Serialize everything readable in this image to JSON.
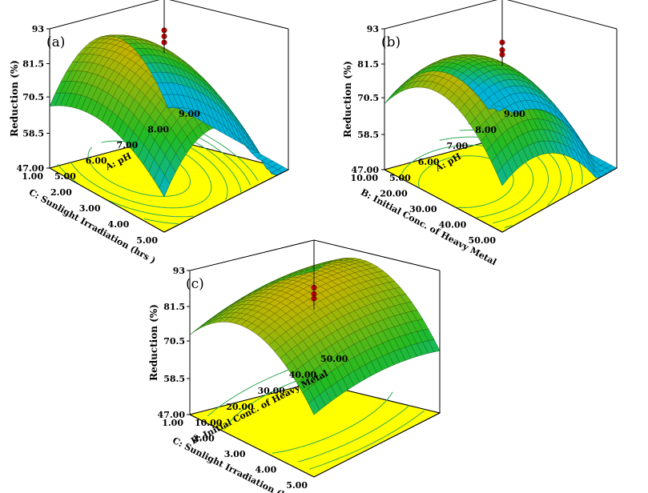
{
  "chart_data": [
    {
      "panel": "(a)",
      "type": "surface3d",
      "zlabel": "Reduction (%)",
      "z_ticks": [
        "93",
        "81.5",
        "70.5",
        "58.5",
        "47.00"
      ],
      "x_axis": {
        "label": "A: pH",
        "ticks": [
          "5.00",
          "6.00",
          "7.00",
          "8.00",
          "9.00"
        ]
      },
      "y_axis": {
        "label": "C: Sunlight Irradiation (hrs )",
        "ticks": [
          "1.00",
          "2.00",
          "3.00",
          "4.00",
          "5.00"
        ]
      },
      "surface": {
        "center": [
          6.5,
          2.5
        ],
        "peak": 87,
        "curv_x": 6.5,
        "curv_y": 2.2
      },
      "design_points": [
        91,
        89,
        87
      ]
    },
    {
      "panel": "(b)",
      "type": "surface3d",
      "zlabel": "Reduction (%)",
      "z_ticks": [
        "93",
        "81.5",
        "70.5",
        "58.5",
        "47.00"
      ],
      "x_axis": {
        "label": "A: pH",
        "ticks": [
          "5.00",
          "6.00",
          "7.00",
          "8.00",
          "9.00"
        ]
      },
      "y_axis": {
        "label": "B: Initial Conc. of Heavy Metal",
        "ticks": [
          "10.00",
          "20.00",
          "30.00",
          "40.00",
          "50.00"
        ]
      },
      "surface": {
        "center": [
          6.0,
          28
        ],
        "peak": 85,
        "curv_x": 3.5,
        "curv_y": 0.04
      },
      "design_points": [
        87,
        84.5,
        83
      ]
    },
    {
      "panel": "(c)",
      "type": "surface3d",
      "zlabel": "Reduction (%)",
      "z_ticks": [
        "93",
        "81.5",
        "70.5",
        "58.5",
        "47.00"
      ],
      "x_axis": {
        "label": "B: Initial Conc. of Heavy Metal",
        "ticks": [
          "10.00",
          "20.00",
          "30.00",
          "40.00",
          "50.00"
        ]
      },
      "y_axis": {
        "label": "C: Sunlight Irradiation (hrs )",
        "ticks": [
          "1.00",
          "2.00",
          "3.00",
          "4.00",
          "5.00"
        ]
      },
      "surface": {
        "center": [
          30,
          2.8
        ],
        "peak": 87,
        "curv_x": 0.008,
        "curv_y": 3.5
      },
      "design_points": [
        86,
        84,
        82.5
      ]
    }
  ],
  "colors": {
    "floor": "#ffff00",
    "contour": "#33aa55",
    "point": "#d00000",
    "low": "#00b4d8",
    "mid": "#22bb22",
    "high": "#c8b400"
  }
}
